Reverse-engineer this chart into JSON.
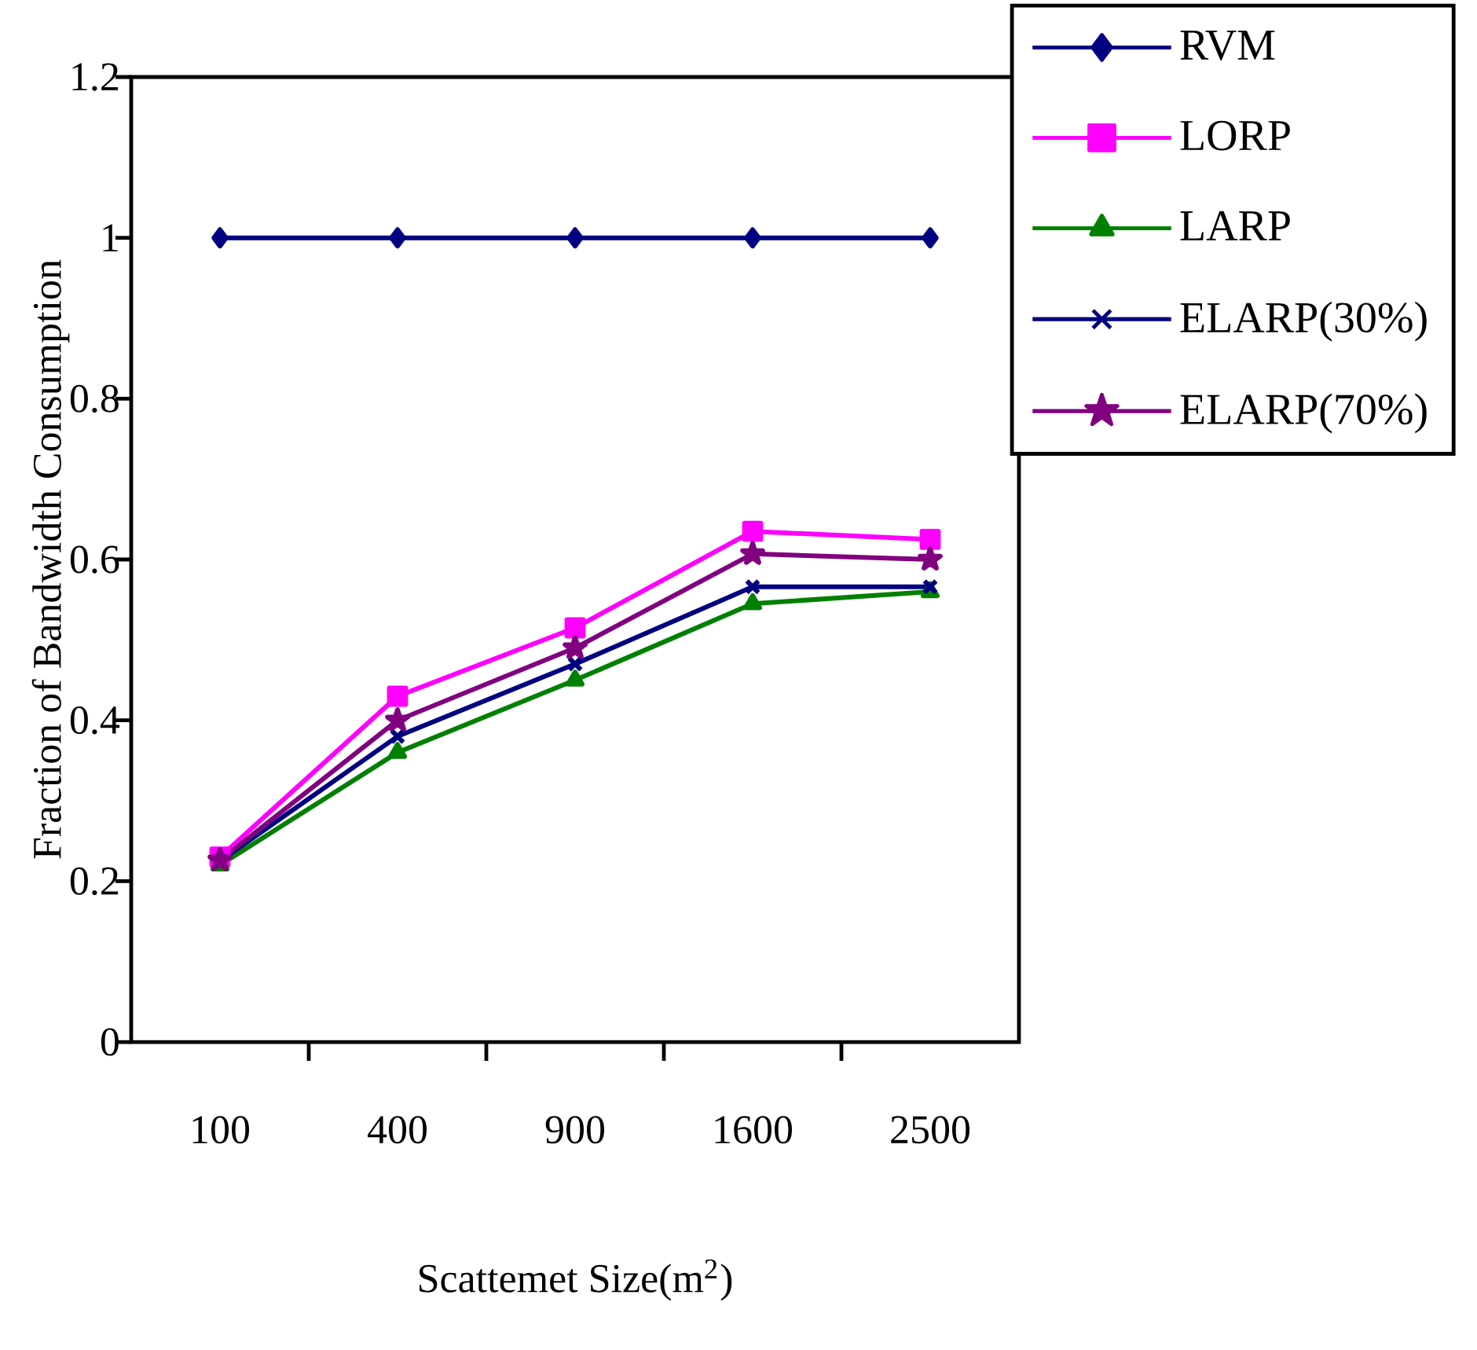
{
  "chart_data": {
    "type": "line",
    "xlabel": "Scattemet Size(m$^{2}$)",
    "ylabel": "Fraction of Bandwidth Consumption",
    "categories": [
      "100",
      "400",
      "900",
      "1600",
      "2500"
    ],
    "ylim": [
      0,
      1.2
    ],
    "yticks": [
      0,
      0.2,
      0.4,
      0.6,
      0.8,
      1,
      1.2
    ],
    "legend": "top right",
    "grid": false,
    "series": [
      {
        "name": "RVM",
        "color": "#000080",
        "marker": "diamond",
        "values": [
          1,
          1,
          1,
          1,
          1
        ]
      },
      {
        "name": "LORP",
        "color": "#ff00ff",
        "marker": "square",
        "values": [
          0.23,
          0.43,
          0.515,
          0.635,
          0.625
        ]
      },
      {
        "name": "LARP",
        "color": "#008000",
        "marker": "triangle",
        "values": [
          0.22,
          0.36,
          0.45,
          0.545,
          0.56
        ]
      },
      {
        "name": "ELARP(30%)",
        "color": "#000080",
        "marker": "cross",
        "values": [
          0.225,
          0.38,
          0.47,
          0.566,
          0.566
        ]
      },
      {
        "name": "ELARP(70%)",
        "color": "#800080",
        "marker": "star",
        "values": [
          0.226,
          0.4,
          0.49,
          0.607,
          0.6
        ]
      }
    ]
  }
}
